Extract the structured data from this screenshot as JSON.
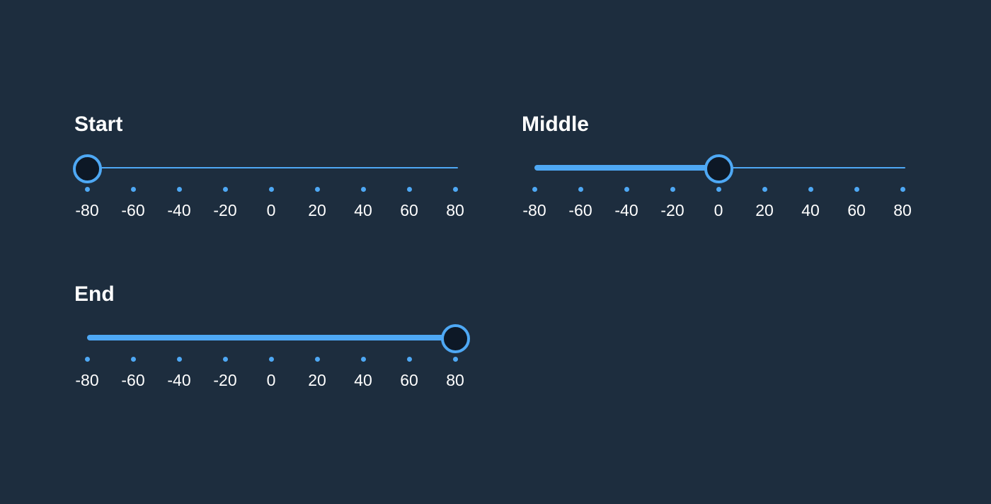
{
  "colors": {
    "background": "#1d2d3e",
    "accent": "#4ea8f4",
    "thumb_fill": "#0d1826",
    "text": "#ffffff"
  },
  "scale": {
    "min": -80,
    "max": 80,
    "ticks": [
      "-80",
      "-60",
      "-40",
      "-20",
      "0",
      "20",
      "40",
      "60",
      "80"
    ]
  },
  "sliders": [
    {
      "label": "Start",
      "value": -80
    },
    {
      "label": "Middle",
      "value": 0
    },
    {
      "label": "End",
      "value": 80
    }
  ]
}
